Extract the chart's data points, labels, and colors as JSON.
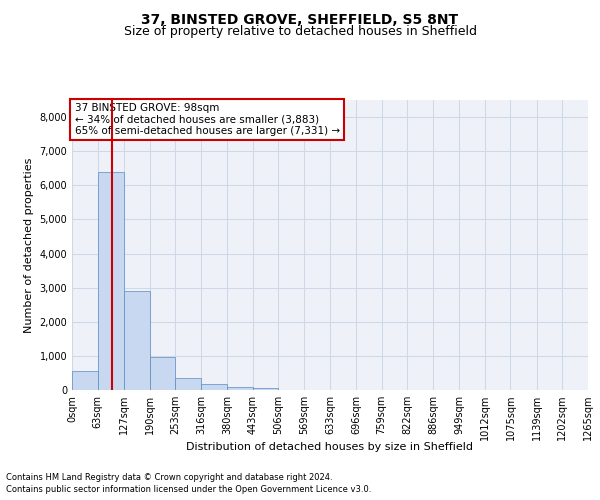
{
  "title": "37, BINSTED GROVE, SHEFFIELD, S5 8NT",
  "subtitle": "Size of property relative to detached houses in Sheffield",
  "xlabel": "Distribution of detached houses by size in Sheffield",
  "ylabel": "Number of detached properties",
  "footnote1": "Contains HM Land Registry data © Crown copyright and database right 2024.",
  "footnote2": "Contains public sector information licensed under the Open Government Licence v3.0.",
  "annotation_title": "37 BINSTED GROVE: 98sqm",
  "annotation_line2": "← 34% of detached houses are smaller (3,883)",
  "annotation_line3": "65% of semi-detached houses are larger (7,331) →",
  "property_size": 98,
  "bin_edges": [
    0,
    63,
    127,
    190,
    253,
    316,
    380,
    443,
    506,
    569,
    633,
    696,
    759,
    822,
    886,
    949,
    1012,
    1075,
    1139,
    1202,
    1265
  ],
  "bin_labels": [
    "0sqm",
    "63sqm",
    "127sqm",
    "190sqm",
    "253sqm",
    "316sqm",
    "380sqm",
    "443sqm",
    "506sqm",
    "569sqm",
    "633sqm",
    "696sqm",
    "759sqm",
    "822sqm",
    "886sqm",
    "949sqm",
    "1012sqm",
    "1075sqm",
    "1139sqm",
    "1202sqm",
    "1265sqm"
  ],
  "bar_heights": [
    560,
    6400,
    2900,
    980,
    360,
    170,
    90,
    65,
    0,
    0,
    0,
    0,
    0,
    0,
    0,
    0,
    0,
    0,
    0,
    0
  ],
  "bar_color": "#c8d8f0",
  "bar_edge_color": "#5a8abf",
  "vline_x": 98,
  "vline_color": "#cc0000",
  "ylim": [
    0,
    8500
  ],
  "yticks": [
    0,
    1000,
    2000,
    3000,
    4000,
    5000,
    6000,
    7000,
    8000
  ],
  "grid_color": "#d0d8e8",
  "bg_color": "#eef2f8",
  "annotation_box_color": "#cc0000",
  "title_fontsize": 10,
  "subtitle_fontsize": 9,
  "axis_label_fontsize": 8,
  "tick_fontsize": 7,
  "annotation_fontsize": 7.5
}
